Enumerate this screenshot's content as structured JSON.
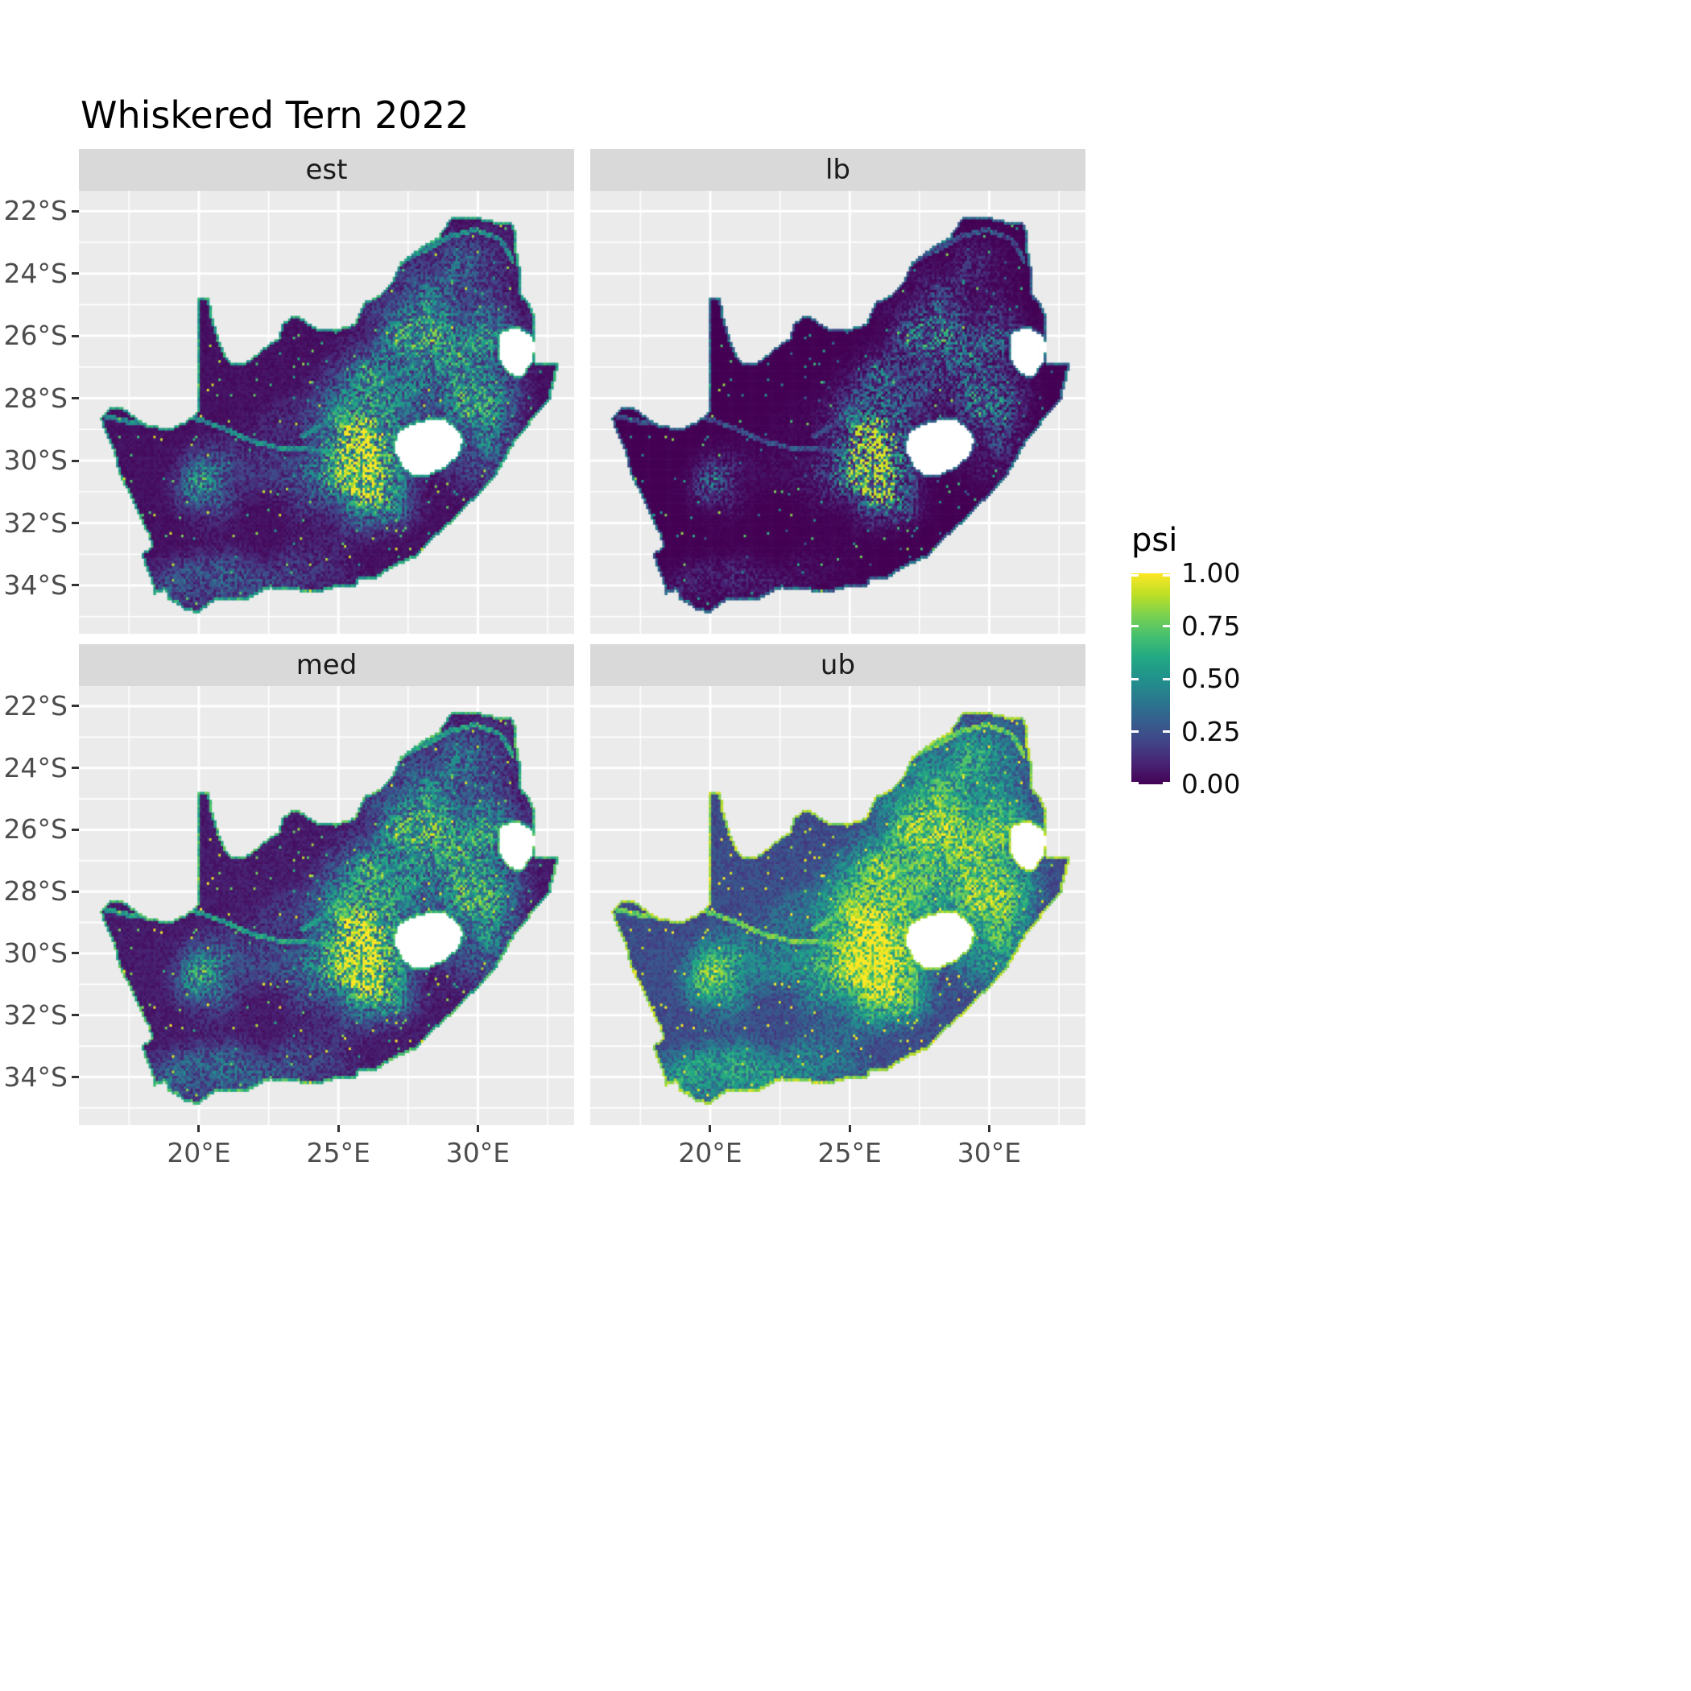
{
  "chart_data": {
    "type": "heatmap",
    "title": "Whiskered Tern 2022",
    "region": "South Africa",
    "facets": [
      {
        "label": "est",
        "gamma": 1.0,
        "scale": 1.0
      },
      {
        "label": "lb",
        "gamma": 1.9,
        "scale": 0.95
      },
      {
        "label": "med",
        "gamma": 0.85,
        "scale": 1.05
      },
      {
        "label": "ub",
        "gamma": 0.5,
        "scale": 1.12
      }
    ],
    "x_ticks": {
      "values": [
        20,
        25,
        30
      ],
      "labels": [
        "20°E",
        "25°E",
        "30°E"
      ]
    },
    "y_ticks": {
      "values": [
        -22,
        -24,
        -26,
        -28,
        -30,
        -32,
        -34
      ],
      "labels": [
        "22°S",
        "24°S",
        "26°S",
        "28°S",
        "30°S",
        "32°S",
        "34°S"
      ]
    },
    "x_range": [
      15.7,
      33.45
    ],
    "y_range": [
      -35.55,
      -21.35
    ],
    "legend": {
      "title": "psi",
      "tick_values": [
        1.0,
        0.75,
        0.5,
        0.25,
        0.0
      ],
      "tick_labels": [
        "1.00",
        "0.75",
        "0.50",
        "0.25",
        "0.00"
      ],
      "range": [
        0.0,
        1.0
      ]
    },
    "cell_size_deg": 0.0833,
    "outline": [
      [
        16.45,
        -28.6
      ],
      [
        16.8,
        -28.3
      ],
      [
        17.2,
        -28.23
      ],
      [
        17.6,
        -28.52
      ],
      [
        18.2,
        -28.87
      ],
      [
        19.0,
        -28.92
      ],
      [
        19.55,
        -28.7
      ],
      [
        19.98,
        -28.42
      ],
      [
        19.98,
        -24.78
      ],
      [
        20.38,
        -24.8
      ],
      [
        20.45,
        -25.35
      ],
      [
        20.65,
        -25.95
      ],
      [
        20.95,
        -26.6
      ],
      [
        21.15,
        -26.86
      ],
      [
        21.8,
        -26.8
      ],
      [
        22.25,
        -26.4
      ],
      [
        22.85,
        -26.05
      ],
      [
        22.95,
        -25.62
      ],
      [
        23.45,
        -25.3
      ],
      [
        24.2,
        -25.75
      ],
      [
        25.0,
        -25.76
      ],
      [
        25.58,
        -25.6
      ],
      [
        25.92,
        -24.92
      ],
      [
        26.5,
        -24.65
      ],
      [
        26.9,
        -24.3
      ],
      [
        27.2,
        -23.65
      ],
      [
        27.95,
        -23.15
      ],
      [
        28.55,
        -22.85
      ],
      [
        29.05,
        -22.2
      ],
      [
        29.7,
        -22.14
      ],
      [
        30.45,
        -22.3
      ],
      [
        31.3,
        -22.4
      ],
      [
        31.4,
        -23.35
      ],
      [
        31.55,
        -24.05
      ],
      [
        31.55,
        -24.65
      ],
      [
        31.95,
        -25.12
      ],
      [
        32.05,
        -25.65
      ],
      [
        32.02,
        -26.2
      ],
      [
        32.02,
        -26.86
      ],
      [
        32.89,
        -26.86
      ],
      [
        32.55,
        -28.05
      ],
      [
        32.0,
        -28.6
      ],
      [
        31.3,
        -29.4
      ],
      [
        30.95,
        -29.95
      ],
      [
        30.55,
        -30.55
      ],
      [
        29.95,
        -31.1
      ],
      [
        29.2,
        -31.8
      ],
      [
        28.45,
        -32.4
      ],
      [
        27.8,
        -33.05
      ],
      [
        27.05,
        -33.32
      ],
      [
        26.3,
        -33.76
      ],
      [
        25.68,
        -33.8
      ],
      [
        25.63,
        -34.05
      ],
      [
        24.9,
        -34.02
      ],
      [
        24.15,
        -34.22
      ],
      [
        23.35,
        -34.1
      ],
      [
        22.55,
        -34.05
      ],
      [
        22.15,
        -34.18
      ],
      [
        21.75,
        -34.42
      ],
      [
        20.95,
        -34.42
      ],
      [
        20.45,
        -34.48
      ],
      [
        20.0,
        -34.82
      ],
      [
        19.55,
        -34.78
      ],
      [
        19.3,
        -34.62
      ],
      [
        18.88,
        -34.4
      ],
      [
        18.8,
        -34.08
      ],
      [
        18.4,
        -34.25
      ],
      [
        18.33,
        -33.9
      ],
      [
        18.05,
        -33.3
      ],
      [
        17.95,
        -32.98
      ],
      [
        18.28,
        -32.72
      ],
      [
        18.2,
        -32.38
      ],
      [
        17.95,
        -31.9
      ],
      [
        17.58,
        -31.18
      ],
      [
        17.12,
        -30.4
      ],
      [
        16.95,
        -29.7
      ],
      [
        16.6,
        -29.0
      ]
    ],
    "holes": [
      [
        [
          27.02,
          -29.65
        ],
        [
          27.12,
          -29.1
        ],
        [
          27.58,
          -28.88
        ],
        [
          28.15,
          -28.7
        ],
        [
          28.72,
          -28.66
        ],
        [
          29.18,
          -28.92
        ],
        [
          29.45,
          -29.3
        ],
        [
          29.3,
          -29.78
        ],
        [
          28.88,
          -30.12
        ],
        [
          28.22,
          -30.42
        ],
        [
          27.72,
          -30.46
        ],
        [
          27.32,
          -30.18
        ]
      ],
      [
        [
          30.8,
          -25.9
        ],
        [
          31.35,
          -25.72
        ],
        [
          31.9,
          -25.98
        ],
        [
          32.02,
          -26.25
        ],
        [
          31.95,
          -26.75
        ],
        [
          31.55,
          -27.3
        ],
        [
          31.1,
          -27.15
        ],
        [
          30.82,
          -26.8
        ],
        [
          30.78,
          -26.3
        ]
      ]
    ],
    "rivers": [
      [
        [
          16.6,
          -28.55
        ],
        [
          17.7,
          -28.78
        ],
        [
          18.7,
          -28.85
        ],
        [
          19.8,
          -28.6
        ],
        [
          20.9,
          -28.95
        ],
        [
          21.9,
          -29.35
        ],
        [
          23.0,
          -29.6
        ],
        [
          24.1,
          -29.62
        ],
        [
          25.3,
          -29.85
        ],
        [
          26.3,
          -30.35
        ],
        [
          26.95,
          -30.35
        ]
      ],
      [
        [
          27.8,
          -26.85
        ],
        [
          26.9,
          -27.3
        ],
        [
          26.0,
          -27.9
        ],
        [
          25.1,
          -28.4
        ],
        [
          24.4,
          -28.85
        ],
        [
          23.7,
          -29.2
        ]
      ],
      [
        [
          27.3,
          -23.6
        ],
        [
          28.2,
          -23.2
        ],
        [
          29.0,
          -22.8
        ],
        [
          29.9,
          -22.6
        ],
        [
          30.8,
          -22.9
        ],
        [
          31.2,
          -23.5
        ]
      ]
    ],
    "hotspots": [
      [
        1.05,
        28.7,
        -26.3,
        1.7,
        1.05
      ],
      [
        0.75,
        26.6,
        -27.9,
        1.2,
        0.9
      ],
      [
        0.7,
        26.3,
        -29.3,
        1.0,
        0.8
      ],
      [
        0.75,
        26.2,
        -30.9,
        1.1,
        0.85
      ],
      [
        0.5,
        29.8,
        -29.3,
        1.0,
        1.1
      ],
      [
        0.45,
        24.8,
        -29.8,
        1.7,
        1.3
      ],
      [
        0.5,
        20.4,
        -30.4,
        0.9,
        0.8
      ],
      [
        0.35,
        19.9,
        -31.3,
        0.7,
        0.6
      ],
      [
        0.35,
        19.5,
        -33.9,
        1.1,
        0.6
      ],
      [
        0.3,
        22.5,
        -33.8,
        2.2,
        0.7
      ],
      [
        0.3,
        29.5,
        -23.5,
        1.6,
        0.9
      ],
      [
        0.3,
        28.0,
        -24.6,
        1.2,
        0.8
      ],
      [
        0.35,
        30.3,
        -27.9,
        0.8,
        0.8
      ]
    ]
  },
  "colors": {
    "background": "#FFFFFF",
    "panel_bg": "#EBEBEB",
    "strip_bg": "#D9D9D9",
    "strip_text": "#1A1A1A",
    "grid_major": "#FFFFFF",
    "axis_text": "#4D4D4D",
    "title_text": "#000000",
    "hole_fill": "#FFFFFF",
    "viridis": [
      "#440154",
      "#482475",
      "#414487",
      "#355f8d",
      "#2a788e",
      "#21918c",
      "#22a884",
      "#44bf70",
      "#7ad151",
      "#bddf26",
      "#fde725"
    ]
  }
}
